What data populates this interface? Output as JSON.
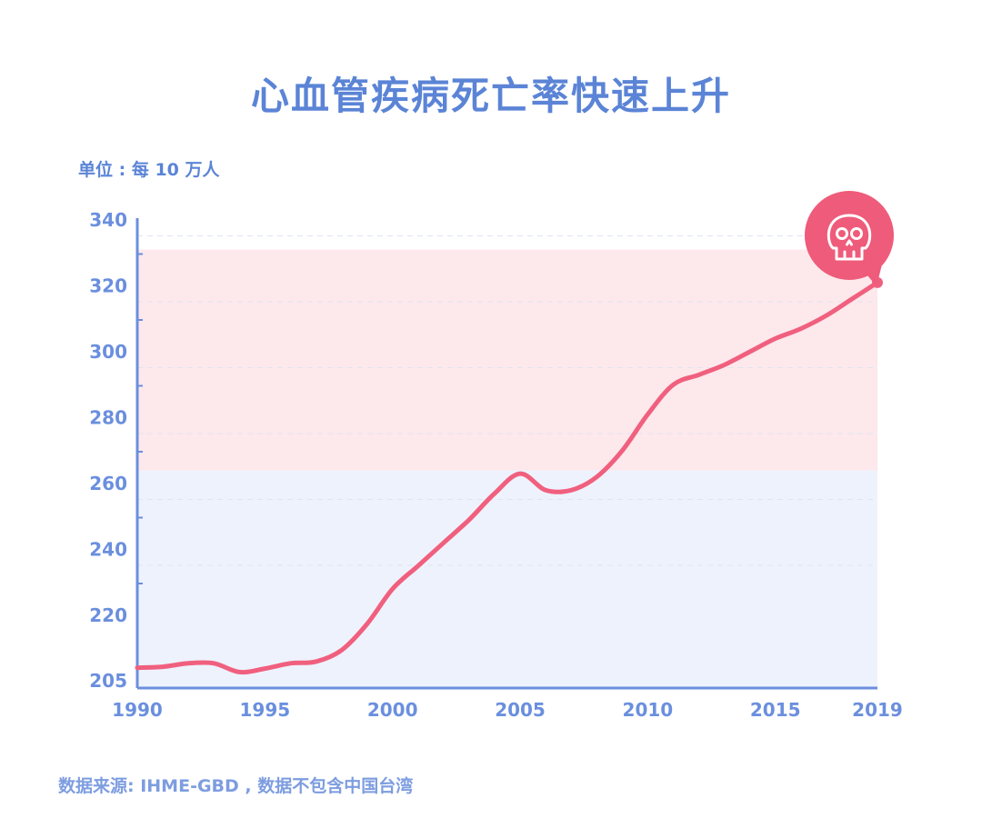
{
  "title": "心血管疾病死亡率快速上升",
  "unit_label": "单位 : 每 10 万人",
  "source_note": "数据来源:  IHME-GBD , 数据不包含中国台湾",
  "colors": {
    "title": "#5b84d6",
    "axis": "#6b8fde",
    "line": "#f0607e",
    "band_high": "#fde8ec",
    "band_low": "#eef2fd",
    "marker_bg": "#ef5b7a"
  },
  "marker_icon": "skull-icon",
  "chart_data": {
    "type": "line",
    "title": "心血管疾病死亡率快速上升",
    "xlabel": "",
    "ylabel": "单位 : 每 10 万人",
    "xlim": [
      1990,
      2019
    ],
    "ylim": [
      205,
      340
    ],
    "x_ticks": [
      1990,
      1995,
      2000,
      2005,
      2010,
      2015,
      2019
    ],
    "y_ticks": [
      205,
      220,
      240,
      260,
      280,
      300,
      320,
      340
    ],
    "grid": true,
    "bands": [
      {
        "from": 205,
        "to": 264,
        "color": "#eef2fd"
      },
      {
        "from": 264,
        "to": 331,
        "color": "#fde8ec"
      }
    ],
    "series": [
      {
        "x": [
          1990,
          1991,
          1992,
          1993,
          1994,
          1995,
          1996,
          1997,
          1998,
          1999,
          2000,
          2001,
          2002,
          2003,
          2004,
          2005,
          2006,
          2007,
          2008,
          2009,
          2010,
          2011,
          2012,
          2013,
          2014,
          2015,
          2016,
          2017,
          2018,
          2019
        ],
        "y": [
          208,
          208.2,
          209,
          209,
          207,
          207.8,
          209,
          209.4,
          212,
          218,
          228,
          235,
          242,
          249,
          257,
          263,
          258,
          258,
          262,
          270,
          281,
          290,
          293,
          296,
          300,
          304,
          307,
          311,
          316,
          321
        ]
      }
    ]
  }
}
